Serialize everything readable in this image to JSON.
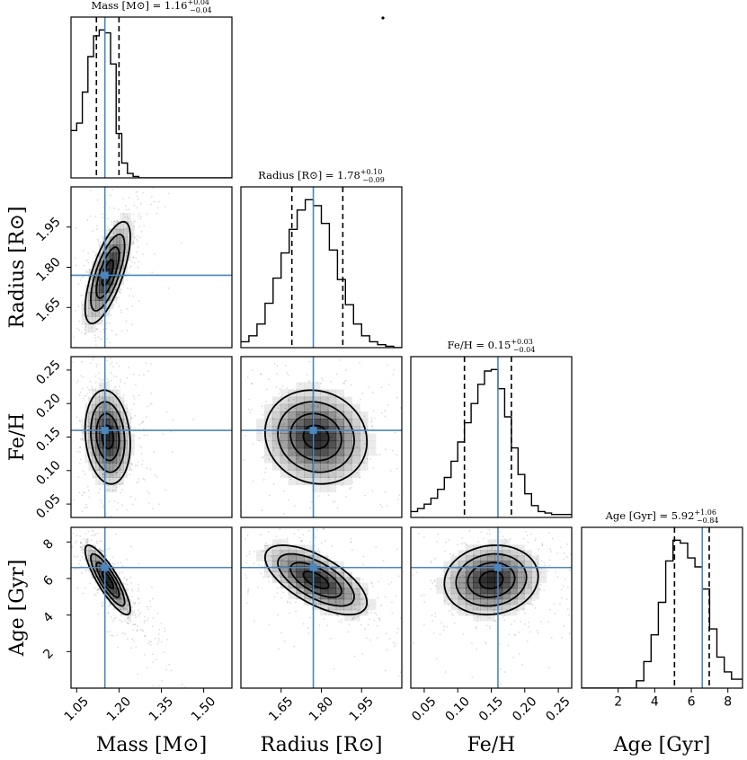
{
  "chart_data": {
    "type": "corner",
    "parameters": [
      {
        "key": "mass",
        "label": "Mass [M⊙]",
        "median": 1.16,
        "plus": 0.04,
        "minus": 0.04,
        "q16": 1.12,
        "q84": 1.2,
        "truth": 1.15,
        "range": [
          1.03,
          1.6
        ],
        "ticks": [
          1.05,
          1.2,
          1.35,
          1.5
        ],
        "tick_labels": [
          "1.05",
          "1.20",
          "1.35",
          "1.50"
        ],
        "hist_edges": [
          1.03,
          1.05,
          1.07,
          1.09,
          1.11,
          1.13,
          1.15,
          1.17,
          1.19,
          1.21,
          1.23,
          1.25,
          1.27,
          1.29,
          1.31,
          1.33,
          1.6
        ],
        "hist_counts": [
          0.32,
          0.37,
          0.58,
          0.82,
          0.96,
          1.0,
          0.98,
          0.77,
          0.3,
          0.1,
          0.03,
          0.01,
          0,
          0,
          0,
          0
        ]
      },
      {
        "key": "radius",
        "label": "Radius [R⊙]",
        "median": 1.78,
        "plus": 0.1,
        "minus": 0.09,
        "q16": 1.69,
        "q84": 1.88,
        "truth": 1.77,
        "range": [
          1.5,
          2.1
        ],
        "ticks": [
          1.65,
          1.8,
          1.95
        ],
        "tick_labels": [
          "1.65",
          "1.80",
          "1.95"
        ],
        "hist_edges": [
          1.5,
          1.53,
          1.56,
          1.59,
          1.62,
          1.65,
          1.68,
          1.71,
          1.74,
          1.77,
          1.8,
          1.83,
          1.86,
          1.89,
          1.92,
          1.95,
          1.98,
          2.01,
          2.04,
          2.07,
          2.1
        ],
        "hist_counts": [
          0.04,
          0.08,
          0.16,
          0.3,
          0.47,
          0.64,
          0.8,
          0.93,
          1.0,
          0.96,
          0.84,
          0.66,
          0.46,
          0.29,
          0.16,
          0.08,
          0.04,
          0.02,
          0.01,
          0.0
        ]
      },
      {
        "key": "feh",
        "label": "Fe/H",
        "median": 0.15,
        "plus": 0.03,
        "minus": 0.04,
        "q16": 0.11,
        "q84": 0.18,
        "truth": 0.16,
        "range": [
          0.03,
          0.27
        ],
        "ticks": [
          0.05,
          0.1,
          0.15,
          0.2,
          0.25
        ],
        "tick_labels": [
          "0.05",
          "0.10",
          "0.15",
          "0.20",
          "0.25"
        ],
        "hist_edges": [
          0.03,
          0.04,
          0.05,
          0.06,
          0.07,
          0.08,
          0.09,
          0.1,
          0.11,
          0.12,
          0.13,
          0.14,
          0.15,
          0.16,
          0.17,
          0.18,
          0.19,
          0.2,
          0.21,
          0.22,
          0.23,
          0.24,
          0.27
        ],
        "hist_counts": [
          0.04,
          0.06,
          0.09,
          0.13,
          0.19,
          0.27,
          0.38,
          0.51,
          0.64,
          0.77,
          0.9,
          0.99,
          1.0,
          0.87,
          0.68,
          0.47,
          0.29,
          0.16,
          0.08,
          0.04,
          0.03,
          0.02
        ]
      },
      {
        "key": "age",
        "label": "Age [Gyr]",
        "median": 5.92,
        "plus": 1.06,
        "minus": 0.84,
        "q16": 5.08,
        "q84": 6.98,
        "truth": 6.6,
        "range": [
          0.0,
          8.8
        ],
        "ticks": [
          2,
          4,
          6,
          8
        ],
        "tick_labels": [
          "2",
          "4",
          "6",
          "8"
        ],
        "hist_edges": [
          0.0,
          3.0,
          3.4,
          3.8,
          4.2,
          4.6,
          5.0,
          5.4,
          5.8,
          6.2,
          6.6,
          7.0,
          7.4,
          7.8,
          8.2,
          8.8
        ],
        "hist_counts": [
          0,
          0.05,
          0.18,
          0.36,
          0.58,
          0.86,
          1.0,
          0.98,
          0.88,
          0.82,
          0.67,
          0.4,
          0.21,
          0.11,
          0.06
        ]
      }
    ],
    "correlations": {
      "radius_mass": 0.7,
      "feh_mass": -0.15,
      "feh_radius": -0.1,
      "age_mass": -0.85,
      "age_radius": -0.65,
      "age_feh": 0.1
    },
    "titles": {
      "mass": {
        "base": "Mass [M⊙] = 1.16",
        "sup": "+0.04",
        "sub": "−0.04"
      },
      "radius": {
        "base": "Radius [R⊙] = 1.78",
        "sup": "+0.10",
        "sub": "−0.09"
      },
      "feh": {
        "base": "Fe/H = 0.15",
        "sup": "+0.03",
        "sub": "−0.04"
      },
      "age": {
        "base": "Age [Gyr] = 5.92",
        "sup": "+1.06",
        "sub": "−0.84"
      }
    },
    "contour_levels": [
      0.5,
      1.0,
      1.5,
      2.0
    ],
    "colors": {
      "truth": "#4a86c0",
      "contour": "#000000"
    }
  }
}
